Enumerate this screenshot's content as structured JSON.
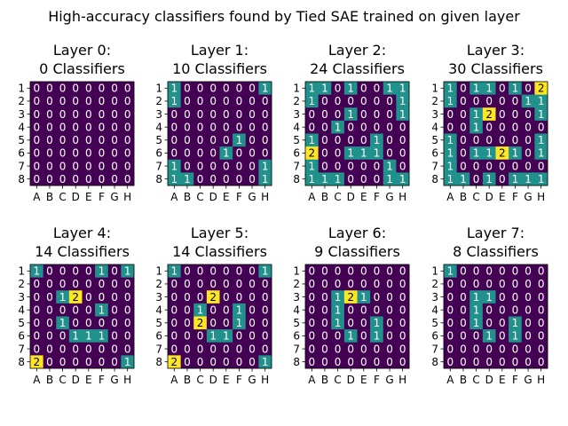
{
  "chart_data": {
    "type": "heatmap",
    "title": "High-accuracy classifiers found by Tied SAE trained on given layer",
    "x_ticks": [
      "A",
      "B",
      "C",
      "D",
      "E",
      "F",
      "G",
      "H"
    ],
    "y_ticks": [
      "1",
      "2",
      "3",
      "4",
      "5",
      "6",
      "7",
      "8"
    ],
    "colormap": "viridis",
    "color_range": [
      0,
      2
    ],
    "colors": {
      "zero": "#440154",
      "one": "#21918c",
      "two": "#fde725",
      "text_light": "#ffffff",
      "text_dark": "#000000"
    },
    "panels": [
      {
        "title_line1": "Layer 0:",
        "title_line2": "0 Classifiers",
        "values": [
          [
            0,
            0,
            0,
            0,
            0,
            0,
            0,
            0
          ],
          [
            0,
            0,
            0,
            0,
            0,
            0,
            0,
            0
          ],
          [
            0,
            0,
            0,
            0,
            0,
            0,
            0,
            0
          ],
          [
            0,
            0,
            0,
            0,
            0,
            0,
            0,
            0
          ],
          [
            0,
            0,
            0,
            0,
            0,
            0,
            0,
            0
          ],
          [
            0,
            0,
            0,
            0,
            0,
            0,
            0,
            0
          ],
          [
            0,
            0,
            0,
            0,
            0,
            0,
            0,
            0
          ],
          [
            0,
            0,
            0,
            0,
            0,
            0,
            0,
            0
          ]
        ]
      },
      {
        "title_line1": "Layer 1:",
        "title_line2": "10 Classifiers",
        "values": [
          [
            1,
            0,
            0,
            0,
            0,
            0,
            0,
            1
          ],
          [
            1,
            0,
            0,
            0,
            0,
            0,
            0,
            0
          ],
          [
            0,
            0,
            0,
            0,
            0,
            0,
            0,
            0
          ],
          [
            0,
            0,
            0,
            0,
            0,
            0,
            0,
            0
          ],
          [
            0,
            0,
            0,
            0,
            0,
            1,
            0,
            0
          ],
          [
            0,
            0,
            0,
            0,
            1,
            0,
            0,
            0
          ],
          [
            1,
            0,
            0,
            0,
            0,
            0,
            0,
            1
          ],
          [
            1,
            1,
            0,
            0,
            0,
            0,
            0,
            1
          ]
        ]
      },
      {
        "title_line1": "Layer 2:",
        "title_line2": "24 Classifiers",
        "values": [
          [
            1,
            1,
            0,
            1,
            0,
            0,
            1,
            1
          ],
          [
            1,
            0,
            0,
            0,
            0,
            0,
            0,
            1
          ],
          [
            0,
            0,
            0,
            1,
            0,
            0,
            0,
            1
          ],
          [
            0,
            0,
            1,
            0,
            0,
            0,
            0,
            0
          ],
          [
            1,
            0,
            0,
            0,
            0,
            1,
            0,
            0
          ],
          [
            2,
            0,
            0,
            1,
            1,
            1,
            0,
            0
          ],
          [
            1,
            0,
            0,
            0,
            0,
            0,
            1,
            0
          ],
          [
            1,
            1,
            1,
            0,
            0,
            0,
            1,
            1
          ]
        ]
      },
      {
        "title_line1": "Layer 3:",
        "title_line2": "30 Classifiers",
        "values": [
          [
            1,
            0,
            1,
            1,
            0,
            1,
            0,
            2
          ],
          [
            1,
            0,
            0,
            0,
            0,
            0,
            1,
            1
          ],
          [
            0,
            0,
            1,
            2,
            0,
            0,
            0,
            1
          ],
          [
            0,
            0,
            1,
            0,
            0,
            0,
            0,
            0
          ],
          [
            1,
            0,
            0,
            0,
            0,
            0,
            0,
            1
          ],
          [
            1,
            0,
            1,
            1,
            2,
            1,
            0,
            1
          ],
          [
            1,
            0,
            0,
            0,
            0,
            0,
            0,
            0
          ],
          [
            1,
            1,
            0,
            1,
            0,
            1,
            1,
            1
          ]
        ]
      },
      {
        "title_line1": "Layer 4:",
        "title_line2": "14 Classifiers",
        "values": [
          [
            1,
            0,
            0,
            0,
            0,
            1,
            0,
            1
          ],
          [
            0,
            0,
            0,
            0,
            0,
            0,
            0,
            0
          ],
          [
            0,
            0,
            1,
            2,
            0,
            0,
            0,
            0
          ],
          [
            0,
            0,
            0,
            0,
            0,
            1,
            0,
            0
          ],
          [
            0,
            0,
            1,
            0,
            0,
            0,
            0,
            0
          ],
          [
            0,
            0,
            0,
            1,
            1,
            1,
            0,
            0
          ],
          [
            0,
            0,
            0,
            0,
            0,
            0,
            0,
            0
          ],
          [
            2,
            0,
            0,
            0,
            0,
            0,
            0,
            1
          ]
        ]
      },
      {
        "title_line1": "Layer 5:",
        "title_line2": "14 Classifiers",
        "values": [
          [
            1,
            0,
            0,
            0,
            0,
            0,
            0,
            1
          ],
          [
            0,
            0,
            0,
            0,
            0,
            0,
            0,
            0
          ],
          [
            0,
            0,
            0,
            2,
            0,
            0,
            0,
            0
          ],
          [
            0,
            0,
            1,
            0,
            0,
            1,
            0,
            0
          ],
          [
            0,
            0,
            2,
            0,
            0,
            1,
            0,
            0
          ],
          [
            0,
            0,
            0,
            1,
            1,
            0,
            0,
            0
          ],
          [
            0,
            0,
            0,
            0,
            0,
            0,
            0,
            0
          ],
          [
            2,
            0,
            0,
            0,
            0,
            0,
            0,
            1
          ]
        ]
      },
      {
        "title_line1": "Layer 6:",
        "title_line2": "9 Classifiers",
        "values": [
          [
            0,
            0,
            0,
            0,
            0,
            0,
            0,
            0
          ],
          [
            0,
            0,
            0,
            0,
            0,
            0,
            0,
            0
          ],
          [
            0,
            0,
            1,
            2,
            1,
            0,
            0,
            0
          ],
          [
            0,
            0,
            1,
            0,
            0,
            0,
            0,
            0
          ],
          [
            0,
            0,
            1,
            0,
            0,
            1,
            0,
            0
          ],
          [
            0,
            0,
            0,
            1,
            0,
            1,
            0,
            0
          ],
          [
            0,
            0,
            0,
            0,
            0,
            0,
            0,
            0
          ],
          [
            0,
            0,
            0,
            0,
            0,
            0,
            0,
            0
          ]
        ]
      },
      {
        "title_line1": "Layer 7:",
        "title_line2": "8 Classifiers",
        "values": [
          [
            1,
            0,
            0,
            0,
            0,
            0,
            0,
            0
          ],
          [
            0,
            0,
            0,
            0,
            0,
            0,
            0,
            0
          ],
          [
            0,
            0,
            1,
            1,
            0,
            0,
            0,
            0
          ],
          [
            0,
            0,
            1,
            0,
            0,
            0,
            0,
            0
          ],
          [
            0,
            0,
            1,
            0,
            0,
            1,
            0,
            0
          ],
          [
            0,
            0,
            0,
            1,
            0,
            1,
            0,
            0
          ],
          [
            0,
            0,
            0,
            0,
            0,
            0,
            0,
            0
          ],
          [
            0,
            0,
            0,
            0,
            0,
            0,
            0,
            0
          ]
        ]
      }
    ]
  }
}
